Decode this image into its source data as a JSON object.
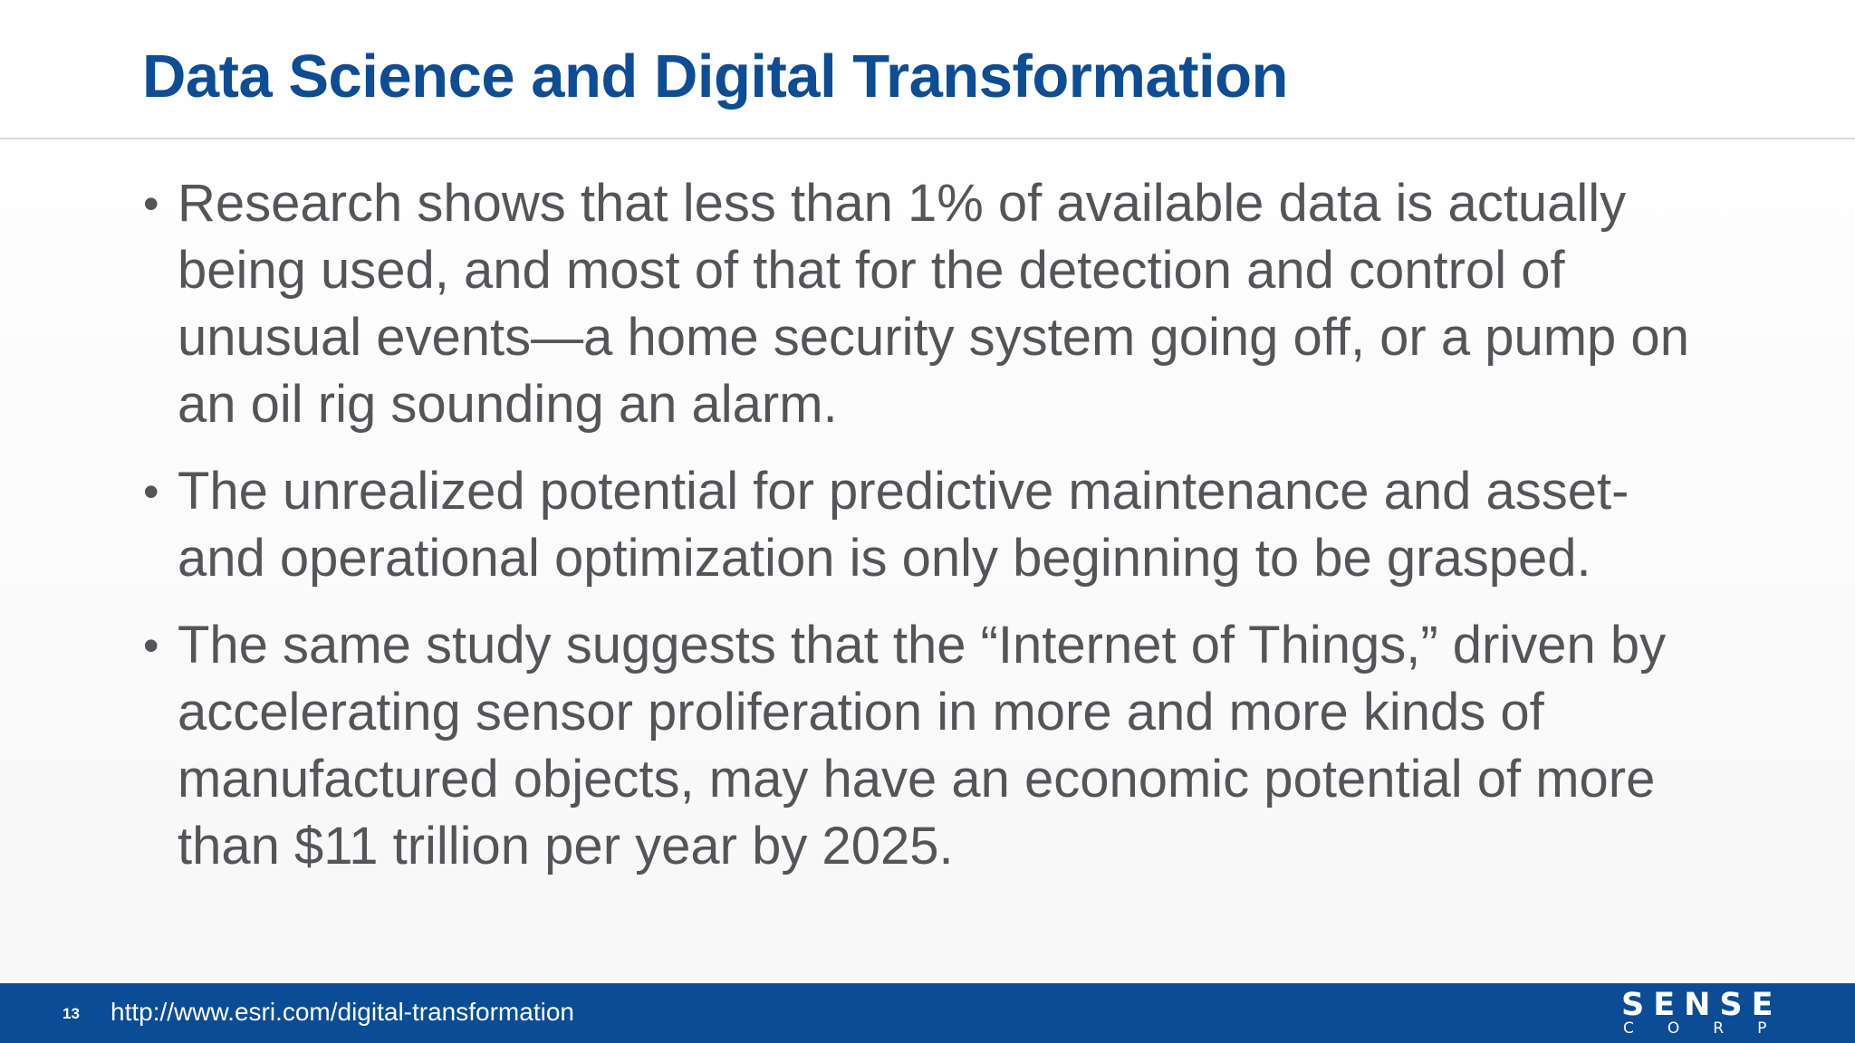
{
  "slide": {
    "title": "Data Science and Digital Transformation",
    "bullets": [
      "Research shows that less than 1% of available data is actually being used, and most of that for the detection and control of unusual events—a home security system going off, or a pump on an oil rig sounding an alarm.",
      "The unrealized potential for predictive maintenance and asset- and operational optimization is only beginning to be grasped.",
      "The same study suggests that the “Internet of Things,” driven by accelerating sensor proliferation in more and more kinds of manufactured objects, may have an economic potential of more than $11 trillion per year by 2025."
    ],
    "bullet_symbol": "•"
  },
  "footer": {
    "page_number": "13",
    "url": "http://www.esri.com/digital-transformation",
    "logo_top": "SENSE",
    "logo_bottom": "CORP"
  },
  "colors": {
    "title": "#0c4d96",
    "body_text": "#555459",
    "footer_bar": "#0b4c97"
  }
}
